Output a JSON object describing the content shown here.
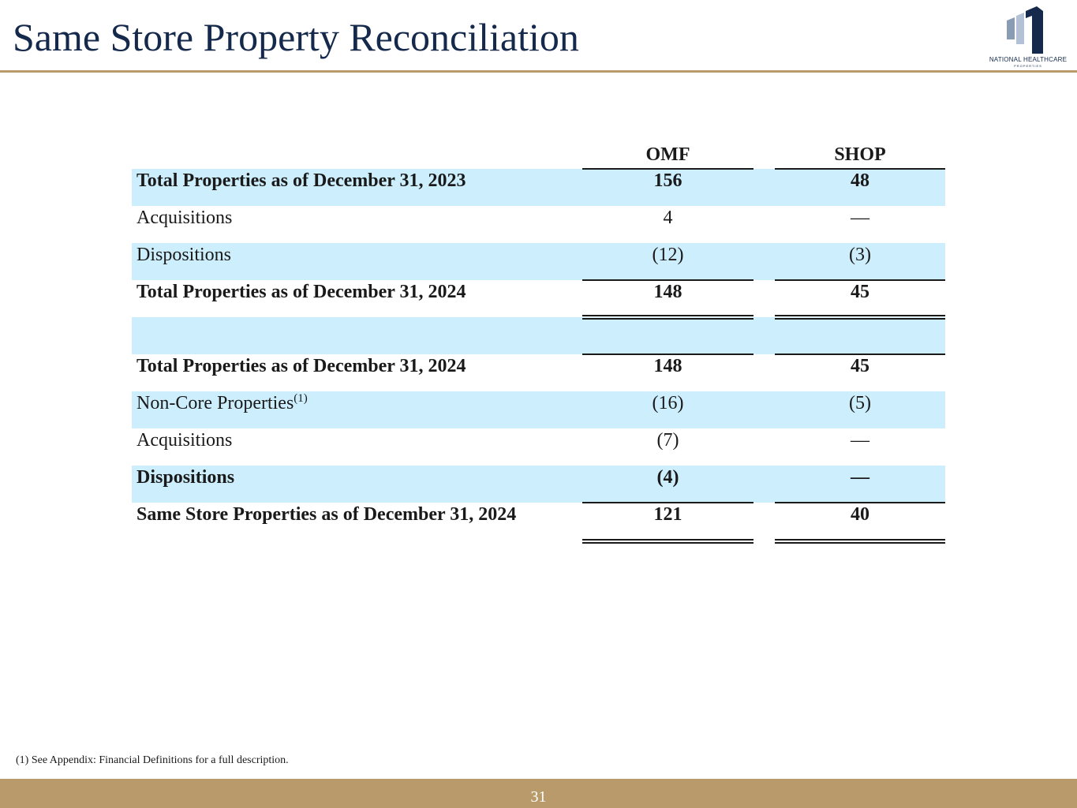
{
  "title": "Same Store Property Reconciliation",
  "logo": {
    "icon": "building-logo-icon",
    "text": "NATIONAL HEALTHCARE",
    "subtext": "PROPERTIES",
    "colors": {
      "navy": "#14294b",
      "gray": "#8a9bb4"
    }
  },
  "table": {
    "columns": [
      "OMF",
      "SHOP"
    ],
    "rows": [
      {
        "label": "Total Properties as of December 31, 2023",
        "omf": "156",
        "shop": "48",
        "bold": true,
        "shaded": true
      },
      {
        "label": "Acquisitions",
        "omf": "4",
        "shop": "—",
        "bold": false,
        "shaded": false
      },
      {
        "label": "Dispositions",
        "omf": "(12)",
        "shop": "(3)",
        "bold": false,
        "shaded": true
      },
      {
        "label": "Total Properties as of December 31, 2024",
        "omf": "148",
        "shop": "45",
        "bold": true,
        "shaded": false
      },
      {
        "label": "",
        "omf": "",
        "shop": "",
        "bold": false,
        "shaded": true
      },
      {
        "label": "Total Properties as of December 31, 2024",
        "omf": "148",
        "shop": "45",
        "bold": true,
        "shaded": false
      },
      {
        "label": "Non-Core Properties",
        "footnote_ref": "(1)",
        "omf": "(16)",
        "shop": "(5)",
        "bold": false,
        "shaded": true
      },
      {
        "label": "Acquisitions",
        "omf": "(7)",
        "shop": "—",
        "bold": false,
        "shaded": false
      },
      {
        "label": "Dispositions",
        "omf": "(4)",
        "shop": "—",
        "bold": true,
        "shaded": true
      },
      {
        "label": "Same Store Properties as of December 31, 2024",
        "omf": "121",
        "shop": "40",
        "bold": true,
        "shaded": false
      }
    ]
  },
  "footnote": "(1) See Appendix: Financial Definitions for a full description.",
  "page_number": "31",
  "colors": {
    "accent": "#b99b6b",
    "title": "#14294b",
    "row_shade": "#cdeefc"
  }
}
